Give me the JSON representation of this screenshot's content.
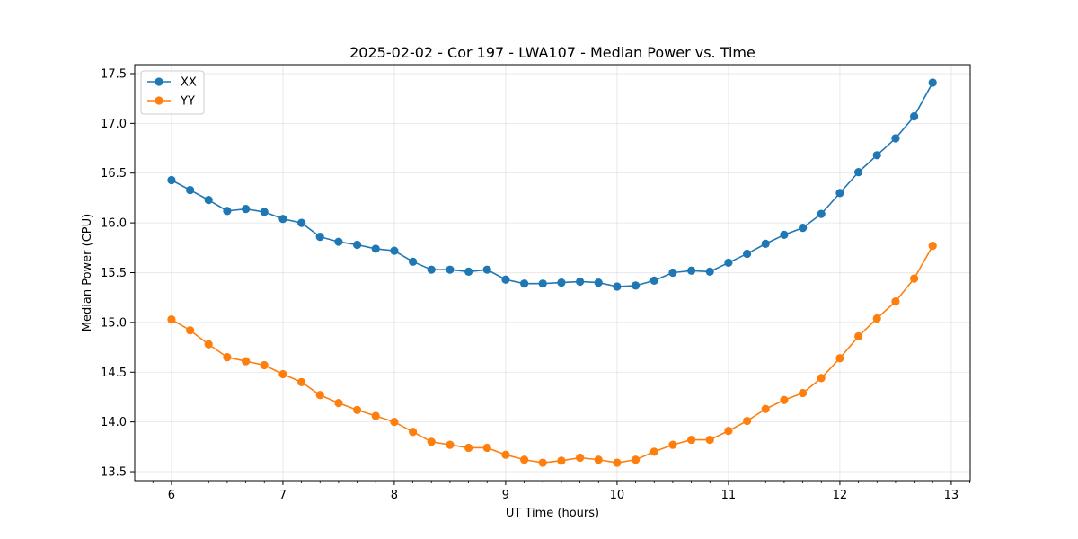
{
  "chart_data": {
    "type": "line",
    "title": "2025-02-02 - Cor 197 - LWA107 - Median Power vs. Time",
    "xlabel": "UT Time (hours)",
    "ylabel": "Median Power (CPU)",
    "xlim": [
      5.67,
      13.17
    ],
    "ylim": [
      13.41,
      17.59
    ],
    "xticks": [
      6,
      7,
      8,
      9,
      10,
      11,
      12,
      13
    ],
    "xtick_labels": [
      "6",
      "7",
      "8",
      "9",
      "10",
      "11",
      "12",
      "13"
    ],
    "yticks": [
      13.5,
      14.0,
      14.5,
      15.0,
      15.5,
      16.0,
      16.5,
      17.0,
      17.5
    ],
    "ytick_labels": [
      "13.5",
      "14.0",
      "14.5",
      "15.0",
      "15.5",
      "16.0",
      "16.5",
      "17.0",
      "17.5"
    ],
    "grid": true,
    "legend_position": "top-left",
    "x": [
      6.0,
      6.167,
      6.333,
      6.5,
      6.667,
      6.833,
      7.0,
      7.167,
      7.333,
      7.5,
      7.667,
      7.833,
      8.0,
      8.167,
      8.333,
      8.5,
      8.667,
      8.833,
      9.0,
      9.167,
      9.333,
      9.5,
      9.667,
      9.833,
      10.0,
      10.167,
      10.333,
      10.5,
      10.667,
      10.833,
      11.0,
      11.167,
      11.333,
      11.5,
      11.667,
      11.833,
      12.0,
      12.167,
      12.333,
      12.5,
      12.667,
      12.833
    ],
    "series": [
      {
        "name": "XX",
        "color": "#1f77b4",
        "values": [
          16.43,
          16.33,
          16.23,
          16.12,
          16.14,
          16.11,
          16.04,
          16.0,
          15.86,
          15.81,
          15.78,
          15.74,
          15.72,
          15.61,
          15.53,
          15.53,
          15.51,
          15.53,
          15.43,
          15.39,
          15.39,
          15.4,
          15.41,
          15.4,
          15.36,
          15.37,
          15.42,
          15.5,
          15.52,
          15.51,
          15.6,
          15.69,
          15.79,
          15.88,
          15.95,
          16.09,
          16.3,
          16.51,
          16.68,
          16.85,
          17.07,
          17.41
        ]
      },
      {
        "name": "YY",
        "color": "#ff7f0e",
        "values": [
          15.03,
          14.92,
          14.78,
          14.65,
          14.61,
          14.57,
          14.48,
          14.4,
          14.27,
          14.19,
          14.12,
          14.06,
          14.0,
          13.9,
          13.8,
          13.77,
          13.74,
          13.74,
          13.67,
          13.62,
          13.59,
          13.61,
          13.64,
          13.62,
          13.59,
          13.62,
          13.7,
          13.77,
          13.82,
          13.82,
          13.91,
          14.01,
          14.13,
          14.22,
          14.29,
          14.44,
          14.64,
          14.86,
          15.04,
          15.21,
          15.44,
          15.77
        ]
      }
    ]
  }
}
